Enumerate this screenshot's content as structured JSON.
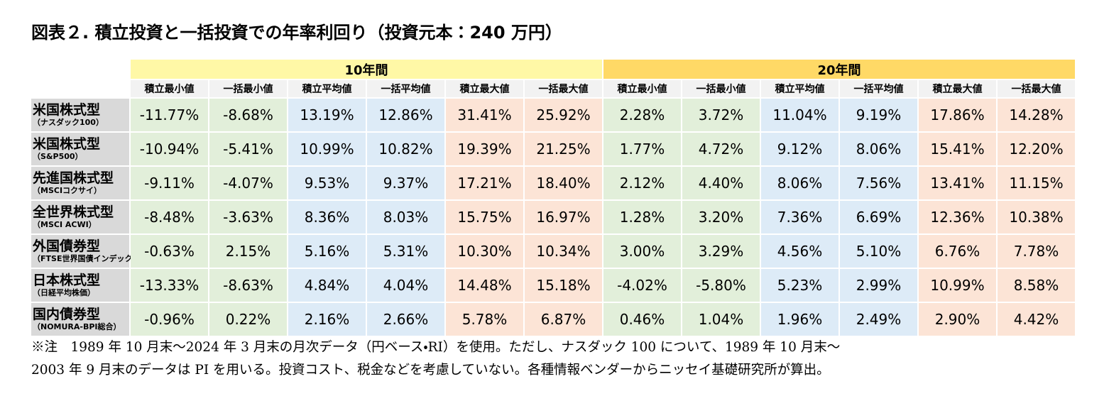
{
  "header": {
    "title": "図表２. 積立投資と一括投資での年率利回り（投資元本：240 万円）"
  },
  "table": {
    "groups": [
      "10年間",
      "20年間"
    ],
    "columns": [
      "積立最小値",
      "一括最小値",
      "積立平均値",
      "一括平均値",
      "積立最大値",
      "一括最大値",
      "積立最小値",
      "一括最小値",
      "積立平均値",
      "一括平均値",
      "積立最大値",
      "一括最大値"
    ],
    "rows": [
      {
        "name": "米国株式型",
        "sub": "（ナスダック100）",
        "cells": [
          "-11.77%",
          "-8.68%",
          "13.19%",
          "12.86%",
          "31.41%",
          "25.92%",
          "2.28%",
          "3.72%",
          "11.04%",
          "9.19%",
          "17.86%",
          "14.28%"
        ]
      },
      {
        "name": "米国株式型",
        "sub": "（S&P500）",
        "cells": [
          "-10.94%",
          "-5.41%",
          "10.99%",
          "10.82%",
          "19.39%",
          "21.25%",
          "1.77%",
          "4.72%",
          "9.12%",
          "8.06%",
          "15.41%",
          "12.20%"
        ]
      },
      {
        "name": "先進国株式型",
        "sub": "（MSCIコクサイ）",
        "cells": [
          "-9.11%",
          "-4.07%",
          "9.53%",
          "9.37%",
          "17.21%",
          "18.40%",
          "2.12%",
          "4.40%",
          "8.06%",
          "7.56%",
          "13.41%",
          "11.15%"
        ]
      },
      {
        "name": "全世界株式型",
        "sub": "（MSCI ACWI）",
        "cells": [
          "-8.48%",
          "-3.63%",
          "8.36%",
          "8.03%",
          "15.75%",
          "16.97%",
          "1.28%",
          "3.20%",
          "7.36%",
          "6.69%",
          "12.36%",
          "10.38%"
        ]
      },
      {
        "name": "外国債券型",
        "sub": "（FTSE世界国債インデックス）",
        "cells": [
          "-0.63%",
          "2.15%",
          "5.16%",
          "5.31%",
          "10.30%",
          "10.34%",
          "3.00%",
          "3.29%",
          "4.56%",
          "5.10%",
          "6.76%",
          "7.78%"
        ]
      },
      {
        "name": "日本株式型",
        "sub": "（日経平均株価）",
        "cells": [
          "-13.33%",
          "-8.63%",
          "4.84%",
          "4.04%",
          "14.48%",
          "15.18%",
          "-4.02%",
          "-5.80%",
          "5.23%",
          "2.99%",
          "10.99%",
          "8.58%"
        ]
      },
      {
        "name": "国内債券型",
        "sub": "（NOMURA-BPI総合）",
        "cells": [
          "-0.96%",
          "0.22%",
          "2.16%",
          "2.66%",
          "5.78%",
          "6.87%",
          "0.46%",
          "1.04%",
          "1.96%",
          "2.49%",
          "2.90%",
          "4.42%"
        ]
      }
    ]
  },
  "footnote": [
    "※注　1989 年 10 月末～2024 年 3 月末の月次データ（円ベース・RI）を使用。ただし、ナスダック 100 について、1989 年 10 月末～",
    "2003 年 9 月末のデータは PI を用いる。投資コスト、税金などを考慮していない。各種情報ベンダーからニッセイ基礎研究所が算出。"
  ]
}
